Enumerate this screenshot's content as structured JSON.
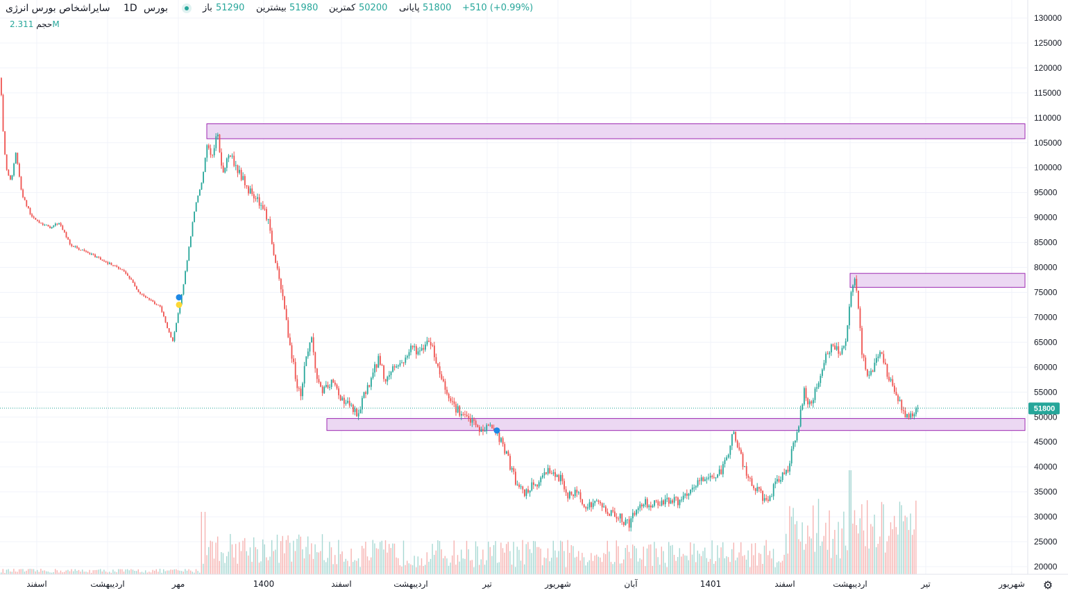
{
  "header": {
    "symbol": "سایراشخاص بورس انرژی",
    "timeframe": "1D",
    "exchange": "بورس",
    "open_label": "باز",
    "open_value": "51290",
    "high_label": "بیشترین",
    "high_value": "51980",
    "low_label": "کمترین",
    "low_value": "50200",
    "close_label": "پایانی",
    "close_value": "51800",
    "change": "+510 (+0.99%)",
    "volume_label": "حجم",
    "volume_value": "2.311M"
  },
  "last_price_label": "51800",
  "colors": {
    "up": "#26a69a",
    "down": "#ef5350",
    "zone_fill": "#e9d1f1",
    "zone_stroke": "#9c27b0",
    "price_tag": "#26a69a"
  },
  "chart_data": {
    "type": "candlestick",
    "y_axis": {
      "min": 20000,
      "max": 130000,
      "ticks": [
        "130000",
        "125000",
        "120000",
        "115000",
        "110000",
        "105000",
        "100000",
        "95000",
        "90000",
        "85000",
        "80000",
        "75000",
        "70000",
        "65000",
        "60000",
        "55000",
        "50000",
        "45000",
        "40000",
        "35000",
        "30000",
        "25000",
        "20000"
      ]
    },
    "x_axis": {
      "labels": [
        "اسفند",
        "اردیبهشت",
        "مهر",
        "1400",
        "اسفند",
        "اردیبهشت",
        "تیر",
        "شهریور",
        "آبان",
        "1401",
        "اسفند",
        "اردیبهشت",
        "تیر",
        "شهریور"
      ]
    },
    "zones": [
      {
        "name": "resistance-zone-top",
        "from": 105800,
        "to": 108800
      },
      {
        "name": "resistance-zone-mid",
        "from": 76000,
        "to": 78800
      },
      {
        "name": "support-zone",
        "from": 47300,
        "to": 49700
      }
    ],
    "price_path": [
      [
        0,
        118000
      ],
      [
        3,
        108000
      ],
      [
        8,
        100000
      ],
      [
        15,
        97000
      ],
      [
        22,
        103000
      ],
      [
        30,
        95000
      ],
      [
        45,
        90000
      ],
      [
        70,
        88000
      ],
      [
        85,
        89000
      ],
      [
        100,
        84500
      ],
      [
        140,
        82000
      ],
      [
        180,
        79000
      ],
      [
        200,
        75000
      ],
      [
        230,
        72000
      ],
      [
        248,
        65000
      ],
      [
        255,
        70000
      ],
      [
        265,
        78000
      ],
      [
        280,
        92000
      ],
      [
        290,
        97000
      ],
      [
        298,
        105000
      ],
      [
        305,
        102000
      ],
      [
        312,
        107000
      ],
      [
        320,
        99000
      ],
      [
        330,
        103000
      ],
      [
        340,
        100000
      ],
      [
        355,
        96000
      ],
      [
        370,
        94000
      ],
      [
        385,
        90000
      ],
      [
        392,
        84000
      ],
      [
        400,
        78000
      ],
      [
        408,
        73000
      ],
      [
        415,
        66000
      ],
      [
        425,
        58000
      ],
      [
        432,
        54000
      ],
      [
        440,
        62000
      ],
      [
        448,
        66000
      ],
      [
        455,
        58000
      ],
      [
        465,
        55000
      ],
      [
        478,
        57000
      ],
      [
        490,
        54000
      ],
      [
        505,
        52000
      ],
      [
        515,
        50000
      ],
      [
        525,
        55000
      ],
      [
        535,
        58000
      ],
      [
        545,
        62000
      ],
      [
        555,
        57000
      ],
      [
        565,
        60000
      ],
      [
        580,
        61000
      ],
      [
        592,
        64000
      ],
      [
        605,
        63000
      ],
      [
        618,
        66000
      ],
      [
        628,
        61000
      ],
      [
        640,
        56000
      ],
      [
        655,
        52000
      ],
      [
        668,
        50000
      ],
      [
        680,
        49000
      ],
      [
        692,
        47000
      ],
      [
        705,
        48500
      ],
      [
        716,
        46500
      ],
      [
        725,
        44000
      ],
      [
        735,
        40000
      ],
      [
        745,
        36000
      ],
      [
        755,
        34500
      ],
      [
        765,
        36000
      ],
      [
        778,
        37000
      ],
      [
        788,
        40000
      ],
      [
        798,
        38000
      ],
      [
        808,
        37500
      ],
      [
        818,
        34000
      ],
      [
        830,
        35000
      ],
      [
        845,
        32000
      ],
      [
        860,
        33000
      ],
      [
        875,
        31000
      ],
      [
        890,
        30000
      ],
      [
        905,
        28500
      ],
      [
        915,
        31000
      ],
      [
        925,
        33000
      ],
      [
        940,
        32500
      ],
      [
        960,
        33500
      ],
      [
        975,
        33000
      ],
      [
        990,
        34000
      ],
      [
        1005,
        37000
      ],
      [
        1020,
        38000
      ],
      [
        1035,
        38500
      ],
      [
        1045,
        41000
      ],
      [
        1055,
        47000
      ],
      [
        1065,
        43000
      ],
      [
        1075,
        38000
      ],
      [
        1085,
        36000
      ],
      [
        1095,
        34500
      ],
      [
        1105,
        33000
      ],
      [
        1115,
        36000
      ],
      [
        1125,
        38000
      ],
      [
        1135,
        40000
      ],
      [
        1143,
        45000
      ],
      [
        1150,
        48500
      ],
      [
        1158,
        55000
      ],
      [
        1168,
        52000
      ],
      [
        1178,
        57000
      ],
      [
        1188,
        62000
      ],
      [
        1198,
        64000
      ],
      [
        1208,
        63000
      ],
      [
        1218,
        65000
      ],
      [
        1226,
        75000
      ],
      [
        1232,
        78000
      ],
      [
        1236,
        71000
      ],
      [
        1242,
        62000
      ],
      [
        1250,
        58000
      ],
      [
        1258,
        60000
      ],
      [
        1268,
        64000
      ],
      [
        1278,
        58000
      ],
      [
        1290,
        55000
      ],
      [
        1300,
        51000
      ],
      [
        1310,
        50000
      ],
      [
        1322,
        51800
      ]
    ],
    "markers": [
      {
        "name": "blue-marker-1",
        "x": 258,
        "y": 74000,
        "color": "#1e88e5"
      },
      {
        "name": "yellow-marker",
        "x": 258,
        "y": 72500,
        "color": "#fdd835"
      },
      {
        "name": "blue-marker-2",
        "x": 716,
        "y": 47300,
        "color": "#1e88e5"
      }
    ]
  }
}
